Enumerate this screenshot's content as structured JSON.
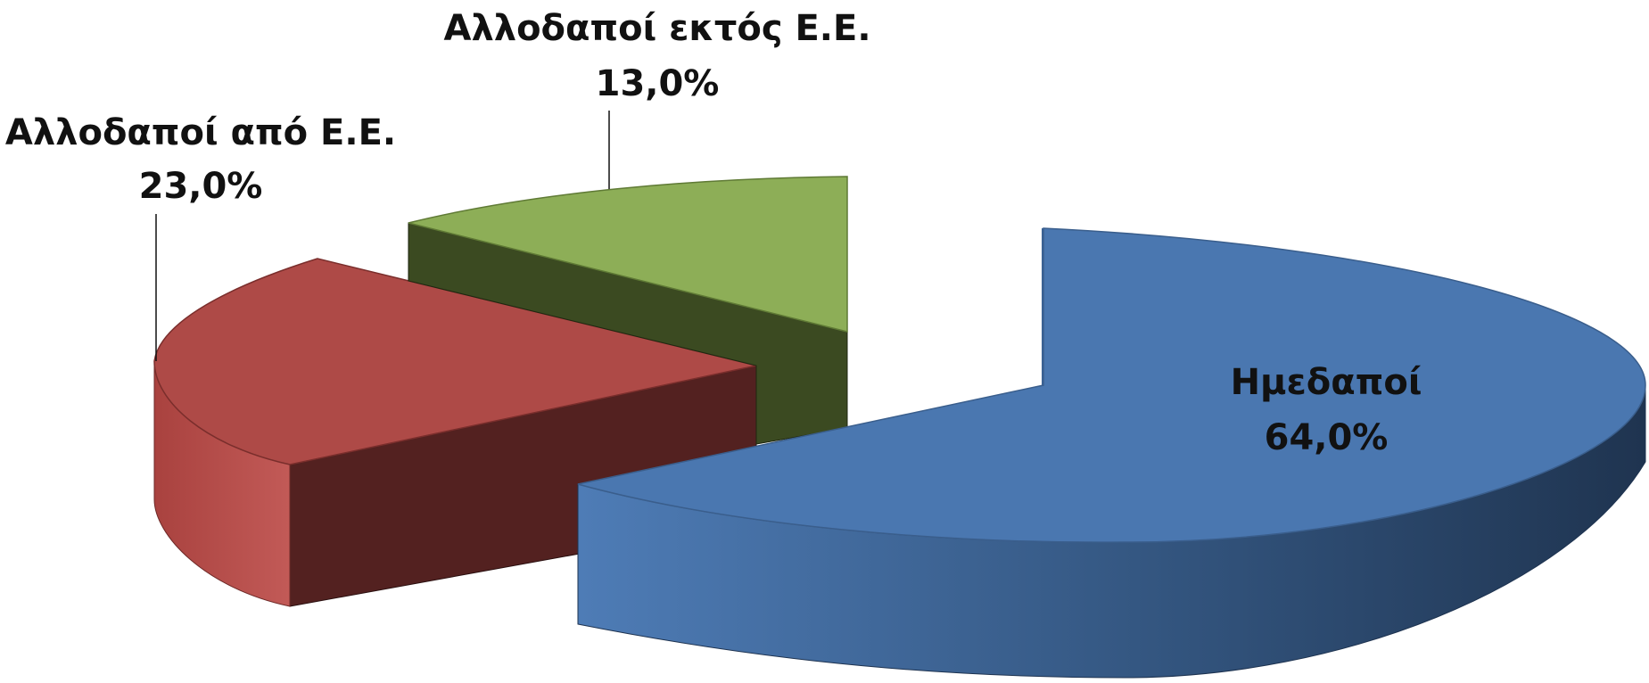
{
  "chart_data": {
    "type": "pie",
    "style": "3d-exploded",
    "categories": [
      "Ημεδαποί",
      "Αλλοδαποί από Ε.Ε.",
      "Αλλοδαποί εκτός Ε.Ε."
    ],
    "values": [
      64.0,
      23.0,
      13.0
    ],
    "value_labels": [
      "64,0%",
      "23,0%",
      "13,0%"
    ],
    "colors": {
      "Ημεδαποί": "#4A77B0",
      "Αλλοδαποί από Ε.Ε.": "#AD4A47",
      "Αλλοδαποί εκτός Ε.Ε.": "#8DAE57"
    },
    "legend": "none",
    "title": ""
  }
}
